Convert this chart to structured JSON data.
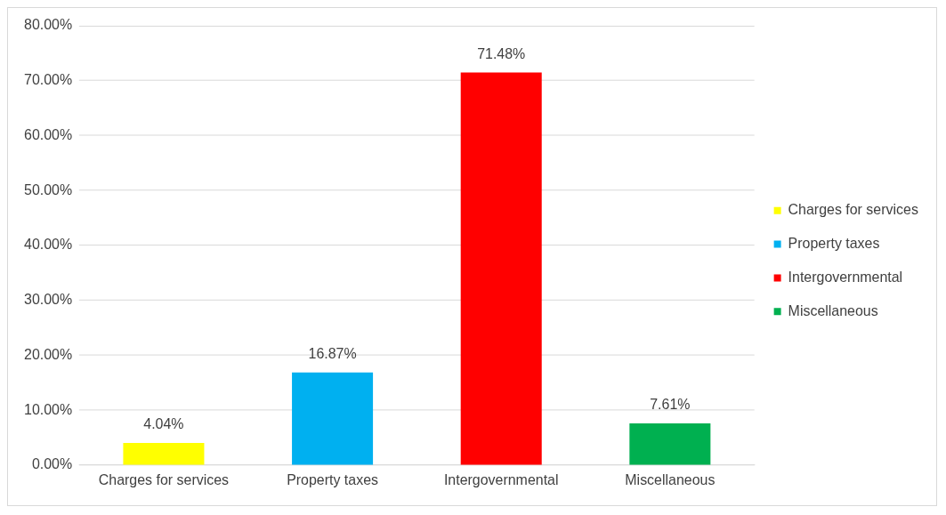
{
  "chart_data": {
    "type": "bar",
    "categories": [
      "Charges for services",
      "Property taxes",
      "Intergovernmental",
      "Miscellaneous"
    ],
    "series": [
      {
        "name": "Charges for services",
        "color": "#ffff00",
        "values": [
          4.04,
          null,
          null,
          null
        ],
        "value_labels": [
          "4.04%",
          null,
          null,
          null
        ]
      },
      {
        "name": "Property taxes",
        "color": "#00b0f0",
        "values": [
          null,
          16.87,
          null,
          null
        ],
        "value_labels": [
          null,
          "16.87%",
          null,
          null
        ]
      },
      {
        "name": "Intergovernmental",
        "color": "#ff0000",
        "values": [
          null,
          null,
          71.48,
          null
        ],
        "value_labels": [
          null,
          null,
          "71.48%",
          null
        ]
      },
      {
        "name": "Miscellaneous",
        "color": "#00b050",
        "values": [
          null,
          null,
          null,
          7.61
        ],
        "value_labels": [
          null,
          null,
          null,
          "7.61%"
        ]
      }
    ],
    "ylim": [
      0,
      80
    ],
    "yticks": [
      {
        "value": 0,
        "label": "0.00%"
      },
      {
        "value": 10,
        "label": "10.00%"
      },
      {
        "value": 20,
        "label": "20.00%"
      },
      {
        "value": 30,
        "label": "30.00%"
      },
      {
        "value": 40,
        "label": "40.00%"
      },
      {
        "value": 50,
        "label": "50.00%"
      },
      {
        "value": 60,
        "label": "60.00%"
      },
      {
        "value": 70,
        "label": "70.00%"
      },
      {
        "value": 80,
        "label": "80.00%"
      }
    ],
    "grid": "y",
    "legend": "right"
  }
}
